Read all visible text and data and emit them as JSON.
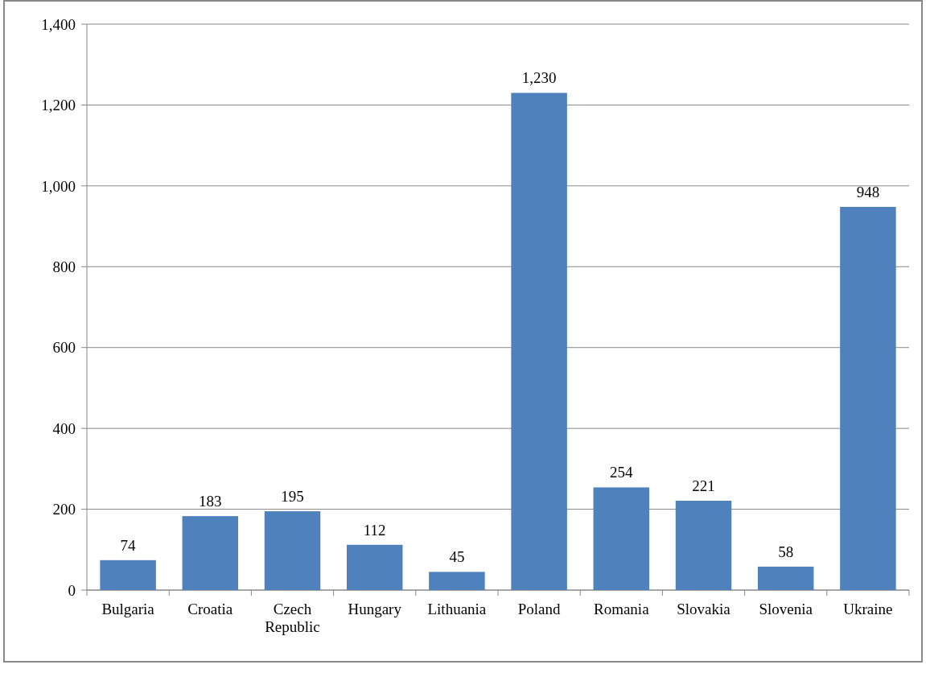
{
  "chart_data": {
    "type": "bar",
    "categories": [
      "Bulgaria",
      "Croatia",
      "Czech Republic",
      "Hungary",
      "Lithuania",
      "Poland",
      "Romania",
      "Slovakia",
      "Slovenia",
      "Ukraine"
    ],
    "values": [
      74,
      183,
      195,
      112,
      45,
      1230,
      254,
      221,
      58,
      948
    ],
    "color": "#4f81bd",
    "ylim": [
      0,
      1400
    ],
    "yticks": [
      {
        "value": 0,
        "label": "0"
      },
      {
        "value": 200,
        "label": "200"
      },
      {
        "value": 400,
        "label": "400"
      },
      {
        "value": 600,
        "label": "600"
      },
      {
        "value": 800,
        "label": "800"
      },
      {
        "value": 1000,
        "label": "1,000"
      },
      {
        "value": 1200,
        "label": "1,200"
      },
      {
        "value": 1400,
        "label": "1,400"
      }
    ],
    "grid": "y",
    "value_labels": [
      "74",
      "183",
      "195",
      "112",
      "45",
      "1,230",
      "254",
      "221",
      "58",
      "948"
    ]
  }
}
